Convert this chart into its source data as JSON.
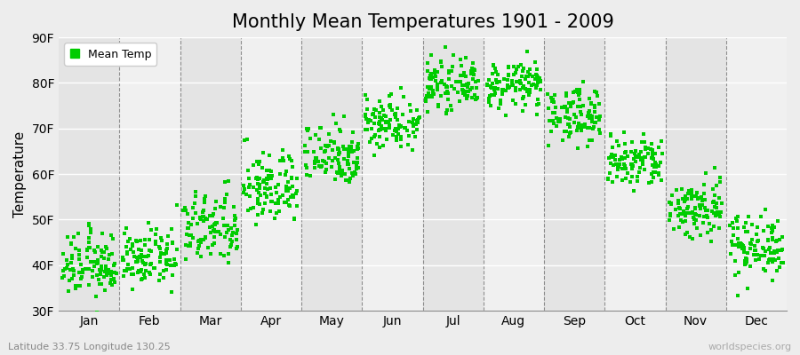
{
  "title": "Monthly Mean Temperatures 1901 - 2009",
  "ylabel": "Temperature",
  "subtitle": "Latitude 33.75 Longitude 130.25",
  "watermark": "worldspecies.org",
  "ylim": [
    30,
    90
  ],
  "yticks": [
    30,
    40,
    50,
    60,
    70,
    80,
    90
  ],
  "ytick_labels": [
    "30F",
    "40F",
    "50F",
    "60F",
    "70F",
    "80F",
    "90F"
  ],
  "months": [
    "Jan",
    "Feb",
    "Mar",
    "Apr",
    "May",
    "Jun",
    "Jul",
    "Aug",
    "Sep",
    "Oct",
    "Nov",
    "Dec"
  ],
  "mean_temps_F": [
    40.0,
    41.5,
    48.0,
    57.0,
    64.5,
    71.5,
    79.5,
    79.5,
    73.0,
    62.5,
    52.5,
    44.5
  ],
  "spread": [
    3.5,
    3.0,
    4.0,
    4.0,
    3.5,
    3.0,
    2.5,
    2.5,
    3.0,
    3.0,
    3.5,
    3.5
  ],
  "n_years": 109,
  "dot_color": "#00CC00",
  "bg_color": "#EDEDED",
  "plot_bg_light": "#F0F0F0",
  "plot_bg_dark": "#E4E4E4",
  "grid_color": "#666666",
  "legend_label": "Mean Temp",
  "marker": "s",
  "marker_size": 3,
  "title_fontsize": 15,
  "axis_fontsize": 11,
  "tick_fontsize": 10
}
